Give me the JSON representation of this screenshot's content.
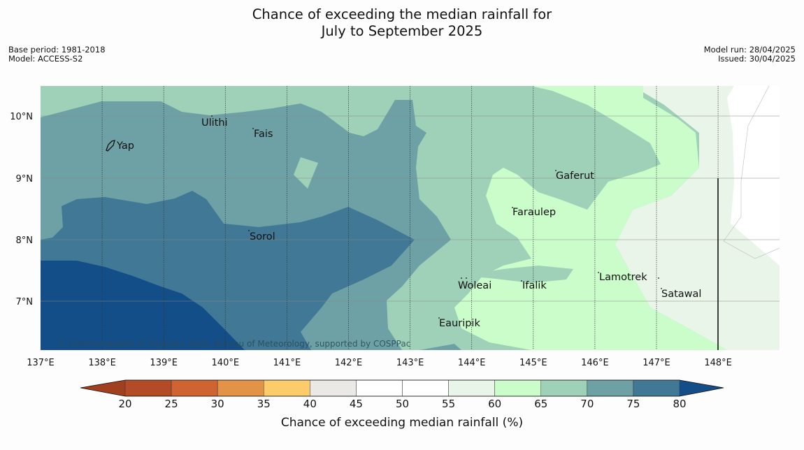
{
  "title": {
    "line1": "Chance of exceeding the median rainfall for",
    "line2": "July to September 2025"
  },
  "meta_left": {
    "base_period": "Base period: 1981-2018",
    "model": "Model: ACCESS-S2"
  },
  "meta_right": {
    "model_run": "Model run: 28/04/2025",
    "issued": "Issued: 30/04/2025"
  },
  "copyright": "© Commonwealth of Australia 2025, Bureau of Meteorology, supported by COSPPac",
  "map": {
    "lon_labels": [
      "137°E",
      "138°E",
      "139°E",
      "140°E",
      "141°E",
      "142°E",
      "143°E",
      "144°E",
      "145°E",
      "146°E",
      "147°E",
      "148°E"
    ],
    "lat_labels": [
      "10°N",
      "9°N",
      "8°N",
      "7°N"
    ],
    "places": [
      {
        "name": "Yap",
        "marker": "island-outline"
      },
      {
        "name": "Ulithi"
      },
      {
        "name": "Fais"
      },
      {
        "name": "Gaferut"
      },
      {
        "name": "Faraulep"
      },
      {
        "name": "Sorol"
      },
      {
        "name": "Lamotrek"
      },
      {
        "name": "Woleai"
      },
      {
        "name": "Ifalik"
      },
      {
        "name": "Satawal"
      },
      {
        "name": "Eauripik"
      }
    ]
  },
  "colorbar": {
    "ticks": [
      "20",
      "25",
      "30",
      "35",
      "40",
      "45",
      "50",
      "55",
      "60",
      "65",
      "70",
      "75",
      "80"
    ],
    "label": "Chance of exceeding median rainfall (%)",
    "colors": {
      "under": "#a0401f",
      "20-25": "#b34b27",
      "25-30": "#cf6332",
      "30-35": "#e29346",
      "35-40": "#fccc6b",
      "40-45": "#ebe9e5",
      "45-50": "#ffffff",
      "50-55": "#ffffff",
      "55-60": "#eaf5e9",
      "60-65": "#cbfdcb",
      "65-70": "#9ed1b8",
      "70-75": "#6da1a5",
      "75-80": "#417895",
      "over": "#144e88"
    }
  }
}
